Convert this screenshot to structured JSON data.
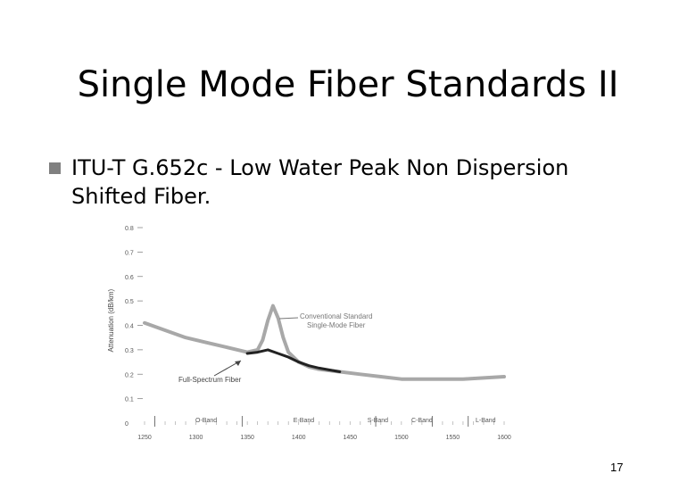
{
  "slide": {
    "title": "Single Mode Fiber Standards II",
    "bullet": "ITU-T G.652c - Low Water Peak Non Dispersion Shifted Fiber.",
    "page_number": "17"
  },
  "chart_data": {
    "type": "line",
    "title": "",
    "xlabel": "",
    "ylabel": "Attenuation (dB/km)",
    "xlim": [
      1250,
      1600
    ],
    "ylim": [
      0,
      0.8
    ],
    "x_ticks": [
      "1250",
      "1300",
      "1350",
      "1400",
      "1450",
      "1500",
      "1550",
      "1600"
    ],
    "y_ticks": [
      "0",
      "0.1",
      "0.2",
      "0.3",
      "0.4",
      "0.5",
      "0.6",
      "0.7",
      "0.8"
    ],
    "bands": [
      {
        "label": "O-Band",
        "x": 1310
      },
      {
        "label": "E-Band",
        "x": 1405
      },
      {
        "label": "S-Band",
        "x": 1477
      },
      {
        "label": "C-Band",
        "x": 1520
      },
      {
        "label": "L-Band",
        "x": 1582
      }
    ],
    "band_dividers": [
      1260,
      1345,
      1475,
      1530,
      1565
    ],
    "annotations": [
      {
        "text": "Conventional Standard",
        "text2": "Single-Mode Fiber"
      },
      {
        "text": "Full-Spectrum Fiber"
      }
    ],
    "series": [
      {
        "name": "Conventional Standard Single-Mode Fiber",
        "color": "#a8a8a8",
        "x": [
          1250,
          1270,
          1290,
          1310,
          1330,
          1350,
          1360,
          1365,
          1370,
          1375,
          1380,
          1385,
          1390,
          1400,
          1410,
          1420,
          1440,
          1460,
          1480,
          1500,
          1520,
          1540,
          1560,
          1580,
          1600
        ],
        "y": [
          0.41,
          0.38,
          0.35,
          0.33,
          0.31,
          0.29,
          0.3,
          0.34,
          0.42,
          0.48,
          0.43,
          0.35,
          0.29,
          0.25,
          0.23,
          0.22,
          0.21,
          0.2,
          0.19,
          0.18,
          0.18,
          0.18,
          0.18,
          0.185,
          0.19
        ]
      },
      {
        "name": "Full-Spectrum Fiber",
        "color": "#222222",
        "x": [
          1350,
          1360,
          1370,
          1380,
          1390,
          1400,
          1410,
          1420,
          1440
        ],
        "y": [
          0.285,
          0.29,
          0.3,
          0.285,
          0.27,
          0.25,
          0.235,
          0.225,
          0.21
        ]
      }
    ]
  }
}
